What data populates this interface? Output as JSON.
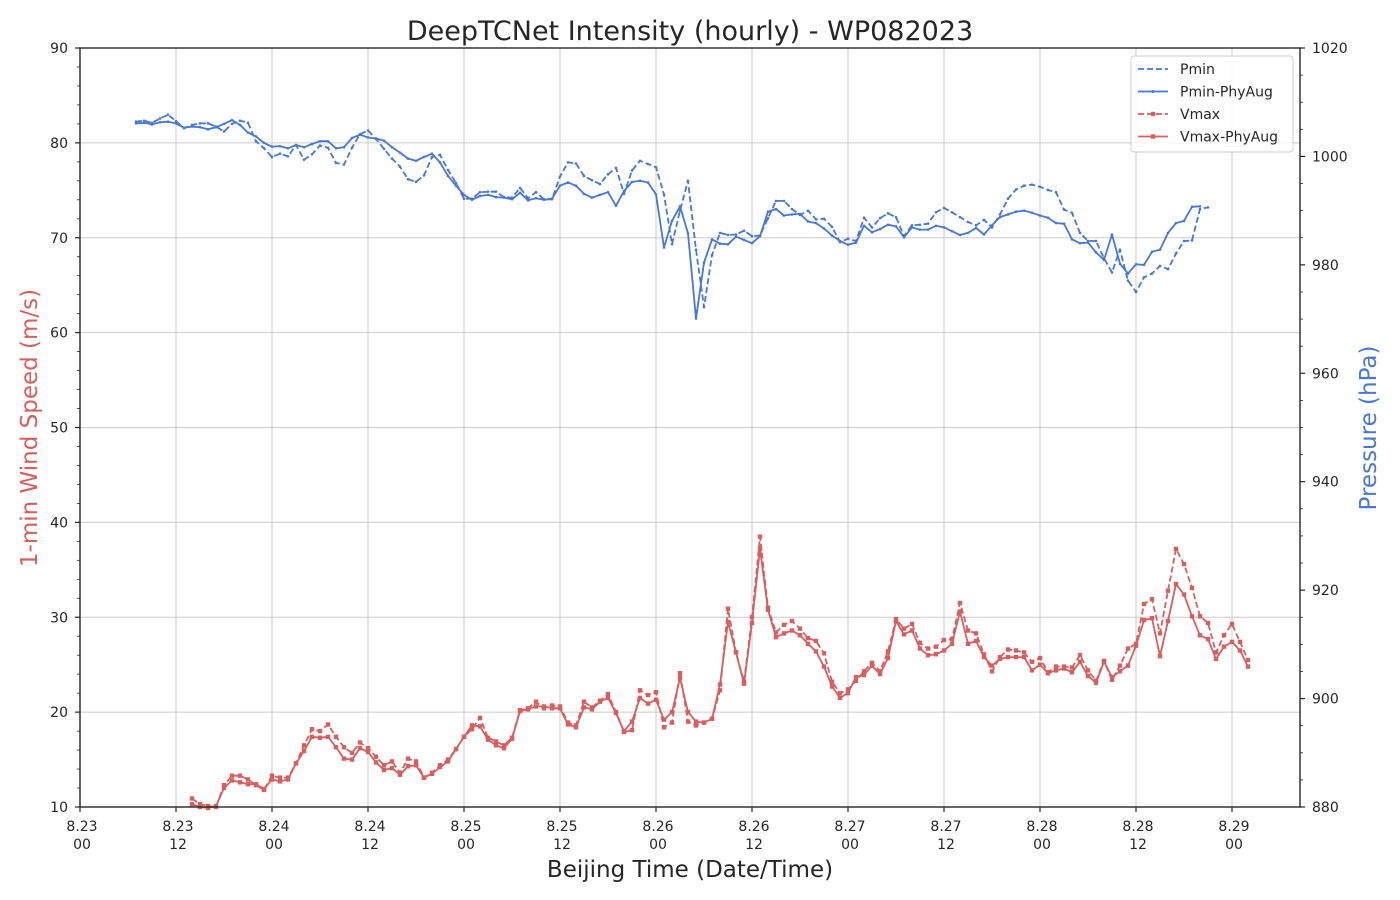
{
  "colors": {
    "pressure": "#4878d0",
    "wind": "#d65f5f"
  },
  "chart_data": {
    "type": "line",
    "title": "DeepTCNet Intensity (hourly) - WP082023",
    "xlabel": "Beijing Time (Date/Time)",
    "ylabel_left": "1-min Wind Speed (m/s)",
    "ylabel_right": "Pressure (hPa)",
    "x_ticks": [
      {
        "x": 0,
        "date": "8.23",
        "hour": "00"
      },
      {
        "x": 12,
        "date": "8.23",
        "hour": "12"
      },
      {
        "x": 24,
        "date": "8.24",
        "hour": "00"
      },
      {
        "x": 36,
        "date": "8.24",
        "hour": "12"
      },
      {
        "x": 48,
        "date": "8.25",
        "hour": "00"
      },
      {
        "x": 60,
        "date": "8.25",
        "hour": "12"
      },
      {
        "x": 72,
        "date": "8.26",
        "hour": "00"
      },
      {
        "x": 84,
        "date": "8.26",
        "hour": "12"
      },
      {
        "x": 96,
        "date": "8.27",
        "hour": "00"
      },
      {
        "x": 108,
        "date": "8.27",
        "hour": "12"
      },
      {
        "x": 120,
        "date": "8.28",
        "hour": "00"
      },
      {
        "x": 132,
        "date": "8.28",
        "hour": "12"
      },
      {
        "x": 144,
        "date": "8.29",
        "hour": "00"
      }
    ],
    "x_range": [
      0,
      152.5
    ],
    "ylim_left": [
      10,
      90
    ],
    "yticks_left": [
      10,
      20,
      30,
      40,
      50,
      60,
      70,
      80,
      90
    ],
    "ylim_right": [
      880,
      1020
    ],
    "yticks_right": [
      880,
      900,
      920,
      940,
      960,
      980,
      1000,
      1020
    ],
    "grid": true,
    "legend_position": "top-right",
    "series": [
      {
        "name": "Pmin",
        "axis": "right",
        "style": "dashed",
        "color": "#4878d0",
        "x_start": 7,
        "x_step": 1,
        "values": [
          1006.4,
          1006.6,
          1006.2,
          1007.0,
          1007.7,
          1006.5,
          1005.2,
          1005.8,
          1006.1,
          1006.1,
          1005.5,
          1004.6,
          1006.0,
          1006.6,
          1006.2,
          1002.8,
          1001.5,
          999.9,
          1000.5,
          1000.0,
          1002.1,
          999.4,
          1000.4,
          1002.0,
          1001.6,
          998.8,
          998.5,
          1001.6,
          1004.1,
          1004.8,
          1003.2,
          1001.4,
          999.6,
          998.1,
          995.8,
          995.3,
          996.5,
          999.9,
          1000.3,
          997.5,
          995.1,
          992.2,
          992.2,
          993.4,
          993.5,
          993.5,
          992.5,
          992.4,
          994.2,
          992.3,
          993.4,
          992.1,
          992.1,
          996.3,
          998.9,
          998.7,
          996.4,
          995.6,
          994.9,
          996.7,
          997.9,
          993.1,
          997.4,
          999.2,
          998.6,
          998.0,
          993.0,
          983.8,
          990.0,
          995.5,
          982.8,
          972.2,
          981.8,
          985.9,
          985.5,
          985.6,
          986.3,
          985.3,
          985.4,
          988.6,
          991.8,
          991.8,
          990.3,
          989.2,
          990.0,
          988.4,
          988.5,
          987.0,
          984.2,
          984.8,
          984.4,
          988.7,
          986.9,
          988.6,
          989.5,
          988.8,
          985.3,
          987.3,
          987.4,
          987.6,
          989.7,
          990.5,
          989.7,
          988.8,
          987.9,
          987.3,
          988.3,
          986.9,
          989.3,
          992.2,
          993.9,
          994.6,
          994.8,
          994.4,
          993.8,
          993.4,
          990.2,
          989.6,
          985.9,
          984.4,
          984.4,
          981.2,
          978.6,
          982.8,
          977.1,
          975.0,
          977.7,
          978.4,
          979.8,
          979.2,
          982.1,
          984.4,
          984.5,
          990.3,
          990.6
        ]
      },
      {
        "name": "Pmin-PhyAug",
        "axis": "right",
        "style": "solid",
        "color": "#4878d0",
        "x_start": 7,
        "x_step": 1,
        "values": [
          1006.1,
          1006.2,
          1005.9,
          1006.3,
          1006.4,
          1006.1,
          1005.3,
          1005.5,
          1005.4,
          1005.0,
          1005.4,
          1006.0,
          1006.7,
          1005.8,
          1004.4,
          1003.7,
          1002.5,
          1001.8,
          1001.9,
          1001.5,
          1002.1,
          1001.7,
          1002.3,
          1002.8,
          1002.8,
          1001.5,
          1001.7,
          1003.4,
          1004.0,
          1003.5,
          1003.3,
          1002.9,
          1001.7,
          1000.7,
          999.6,
          999.2,
          999.9,
          1000.5,
          998.9,
          996.4,
          994.6,
          992.9,
          992.0,
          992.7,
          992.9,
          992.5,
          992.4,
          992.1,
          993.3,
          991.9,
          992.3,
          992.0,
          992.2,
          994.6,
          995.2,
          994.6,
          993.1,
          992.4,
          992.9,
          993.4,
          990.9,
          993.6,
          995.3,
          995.5,
          995.2,
          993.0,
          983.2,
          988.1,
          990.8,
          985.8,
          970.1,
          980.4,
          984.7,
          983.9,
          983.8,
          985.2,
          984.6,
          984.0,
          985.3,
          989.8,
          990.3,
          989.1,
          989.3,
          989.4,
          988.0,
          987.7,
          986.7,
          985.4,
          984.4,
          983.7,
          984.1,
          987.2,
          986.0,
          986.6,
          987.4,
          987.1,
          985.1,
          986.9,
          986.5,
          986.5,
          987.2,
          986.9,
          986.2,
          985.5,
          985.9,
          986.8,
          985.6,
          987.3,
          988.8,
          989.3,
          989.8,
          990.0,
          989.6,
          989.1,
          988.7,
          987.7,
          987.6,
          984.7,
          984.0,
          984.1,
          982.3,
          980.9,
          985.6,
          980.2,
          978.4,
          980.1,
          980.0,
          982.4,
          982.8,
          985.9,
          987.7,
          988.1,
          990.7,
          990.8
        ]
      },
      {
        "name": "Vmax",
        "axis": "left",
        "style": "dashed",
        "color": "#d65f5f",
        "x_start": 14,
        "x_step": 1,
        "values": [
          10.9,
          10.3,
          10.1,
          10.0,
          12.3,
          13.3,
          13.3,
          12.9,
          12.3,
          11.8,
          13.3,
          13.1,
          13.1,
          14.6,
          16.5,
          18.2,
          18.0,
          18.7,
          17.4,
          16.3,
          15.7,
          16.8,
          16.2,
          15.3,
          14.4,
          14.8,
          13.6,
          15.1,
          14.8,
          13.1,
          13.6,
          14.4,
          15.0,
          16.1,
          17.4,
          18.2,
          19.4,
          17.3,
          16.9,
          16.5,
          17.3,
          20.2,
          20.4,
          21.1,
          20.4,
          20.7,
          20.6,
          18.9,
          18.6,
          21.1,
          20.5,
          21.2,
          21.9,
          20.0,
          17.9,
          18.1,
          22.3,
          21.8,
          22.1,
          18.4,
          18.9,
          24.1,
          19.0,
          18.6,
          18.9,
          19.3,
          22.3,
          30.9,
          26.3,
          23.2,
          30.0,
          38.5,
          31.0,
          28.4,
          29.2,
          29.6,
          28.8,
          27.8,
          27.5,
          26.2,
          23.2,
          22.0,
          22.4,
          23.3,
          24.3,
          25.2,
          24.3,
          26.4,
          29.8,
          28.8,
          29.3,
          27.3,
          26.7,
          26.9,
          27.6,
          27.7,
          31.5,
          28.6,
          28.3,
          26.1,
          24.3,
          25.8,
          26.6,
          26.5,
          26.3,
          25.3,
          25.7,
          24.2,
          24.8,
          24.8,
          24.7,
          26.0,
          24.4,
          23.3,
          25.4,
          23.4,
          24.9,
          26.7,
          27.2,
          31.4,
          31.9,
          28.3,
          32.8,
          37.2,
          35.6,
          33.1,
          30.1,
          29.4,
          26.3,
          28.1,
          29.3,
          27.4,
          25.5
        ]
      },
      {
        "name": "Vmax-PhyAug",
        "axis": "left",
        "style": "solid",
        "color": "#d65f5f",
        "x_start": 14,
        "x_step": 1,
        "values": [
          10.3,
          10.0,
          9.9,
          10.1,
          12.0,
          12.8,
          12.6,
          12.4,
          12.4,
          11.9,
          12.9,
          12.7,
          12.9,
          14.6,
          15.9,
          17.4,
          17.3,
          17.4,
          16.3,
          15.1,
          15.0,
          16.2,
          15.8,
          14.7,
          13.9,
          14.1,
          13.4,
          14.3,
          14.4,
          13.1,
          13.5,
          14.2,
          14.8,
          16.1,
          17.4,
          18.6,
          18.5,
          17.1,
          16.5,
          16.2,
          17.2,
          20.1,
          20.3,
          20.6,
          20.6,
          20.4,
          20.4,
          18.7,
          18.4,
          20.5,
          20.3,
          21.1,
          21.5,
          19.9,
          18.0,
          19.0,
          21.5,
          20.9,
          21.3,
          19.2,
          20.0,
          23.6,
          20.0,
          19.0,
          18.9,
          19.3,
          22.9,
          29.5,
          26.3,
          23.0,
          29.4,
          37.2,
          30.8,
          27.9,
          28.3,
          28.6,
          28.1,
          27.2,
          26.4,
          24.8,
          22.7,
          21.5,
          22.0,
          23.7,
          23.9,
          24.9,
          24.0,
          25.7,
          29.6,
          28.2,
          28.6,
          26.7,
          26.0,
          26.1,
          26.5,
          27.2,
          30.6,
          27.2,
          27.5,
          25.8,
          24.9,
          25.6,
          25.8,
          25.8,
          25.8,
          24.4,
          25.0,
          24.1,
          24.4,
          24.6,
          24.2,
          25.3,
          23.8,
          23.1,
          25.3,
          23.7,
          24.3,
          24.9,
          27.0,
          29.7,
          29.9,
          25.9,
          29.6,
          33.5,
          32.4,
          30.1,
          28.1,
          27.7,
          25.6,
          26.9,
          27.4,
          26.5,
          24.8
        ]
      }
    ]
  }
}
